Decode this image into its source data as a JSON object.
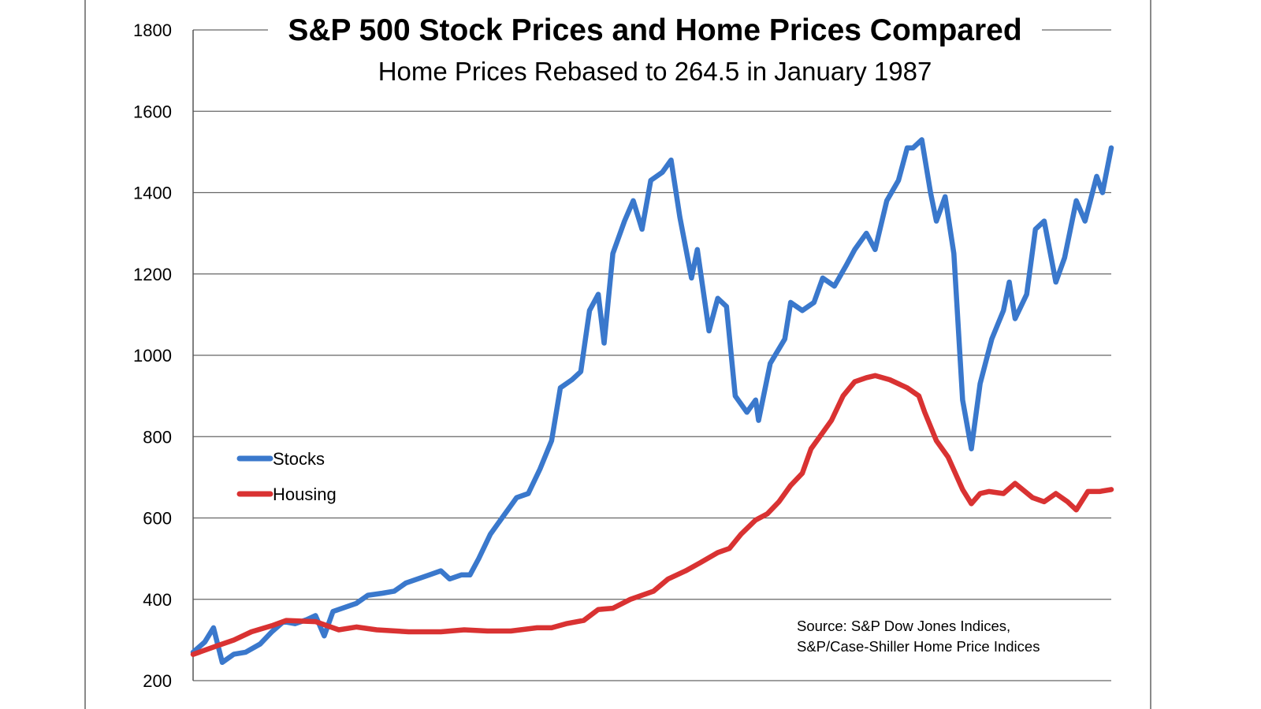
{
  "chart_data": {
    "type": "line",
    "title": "S&P 500 Stock Prices and Home Prices Compared",
    "subtitle": "Home Prices Rebased to 264.5 in January 1987",
    "xlabel": "",
    "ylabel": "",
    "xlim": [
      "1987-01",
      "2013-04"
    ],
    "ylim": [
      200,
      1800
    ],
    "yticks": [
      200,
      400,
      600,
      800,
      1000,
      1200,
      1400,
      1600,
      1800
    ],
    "grid": "horizontal",
    "legend_position": "middle-left",
    "annotation": [
      "Source: S&P Dow Jones Indices,",
      "S&P/Case-Shiller Home Price Indices"
    ],
    "series": [
      {
        "name": "Stocks",
        "color": "#3a78cc",
        "x": [
          "1987-01",
          "1987-05",
          "1987-08",
          "1987-11",
          "1988-03",
          "1988-07",
          "1988-12",
          "1989-04",
          "1989-08",
          "1989-12",
          "1990-04",
          "1990-07",
          "1990-10",
          "1991-01",
          "1991-05",
          "1991-09",
          "1992-01",
          "1992-06",
          "1992-10",
          "1993-02",
          "1993-06",
          "1993-10",
          "1994-02",
          "1994-05",
          "1994-09",
          "1994-12",
          "1995-03",
          "1995-07",
          "1995-12",
          "1996-04",
          "1996-08",
          "1996-12",
          "1997-04",
          "1997-07",
          "1997-11",
          "1998-02",
          "1998-05",
          "1998-08",
          "1998-10",
          "1999-01",
          "1999-05",
          "1999-08",
          "1999-11",
          "2000-02",
          "2000-06",
          "2000-09",
          "2000-12",
          "2001-04",
          "2001-06",
          "2001-10",
          "2002-01",
          "2002-04",
          "2002-07",
          "2002-11",
          "2003-02",
          "2003-03",
          "2003-07",
          "2003-12",
          "2004-02",
          "2004-06",
          "2004-10",
          "2005-01",
          "2005-05",
          "2005-09",
          "2005-12",
          "2006-04",
          "2006-07",
          "2006-11",
          "2007-03",
          "2007-06",
          "2007-08",
          "2007-11",
          "2008-02",
          "2008-04",
          "2008-07",
          "2008-10",
          "2009-01",
          "2009-04",
          "2009-07",
          "2009-11",
          "2010-03",
          "2010-05",
          "2010-07",
          "2010-11",
          "2011-02",
          "2011-05",
          "2011-09",
          "2011-12",
          "2012-04",
          "2012-07",
          "2012-11",
          "2013-01",
          "2013-04"
        ],
        "values": [
          270,
          295,
          330,
          245,
          265,
          270,
          290,
          320,
          345,
          340,
          350,
          360,
          310,
          370,
          380,
          390,
          410,
          415,
          420,
          440,
          450,
          460,
          470,
          450,
          460,
          460,
          500,
          560,
          610,
          650,
          660,
          720,
          790,
          920,
          940,
          960,
          1110,
          1150,
          1030,
          1250,
          1330,
          1380,
          1310,
          1430,
          1450,
          1480,
          1340,
          1190,
          1260,
          1060,
          1140,
          1120,
          900,
          860,
          890,
          840,
          980,
          1040,
          1130,
          1110,
          1130,
          1190,
          1170,
          1220,
          1260,
          1300,
          1260,
          1380,
          1430,
          1510,
          1510,
          1530,
          1400,
          1330,
          1390,
          1250,
          890,
          770,
          930,
          1040,
          1110,
          1180,
          1090,
          1150,
          1310,
          1330,
          1180,
          1240,
          1380,
          1330,
          1440,
          1400,
          1510
        ]
      },
      {
        "name": "Housing",
        "color": "#d93232",
        "x": [
          "1987-01",
          "1987-09",
          "1988-03",
          "1988-09",
          "1989-04",
          "1989-09",
          "1990-07",
          "1991-03",
          "1991-09",
          "1992-04",
          "1993-03",
          "1994-02",
          "1994-10",
          "1995-06",
          "1996-02",
          "1996-11",
          "1997-04",
          "1997-09",
          "1998-03",
          "1998-08",
          "1999-01",
          "1999-07",
          "2000-03",
          "2000-08",
          "2001-02",
          "2001-07",
          "2002-01",
          "2002-05",
          "2002-09",
          "2003-02",
          "2003-06",
          "2003-10",
          "2004-02",
          "2004-06",
          "2004-09",
          "2005-01",
          "2005-04",
          "2005-08",
          "2005-12",
          "2006-04",
          "2006-07",
          "2006-12",
          "2007-06",
          "2007-10",
          "2007-12",
          "2008-04",
          "2008-08",
          "2009-01",
          "2009-04",
          "2009-07",
          "2009-10",
          "2010-03",
          "2010-07",
          "2011-01",
          "2011-05",
          "2011-09",
          "2012-01",
          "2012-04",
          "2012-08",
          "2012-12",
          "2013-04"
        ],
        "values": [
          264.5,
          285,
          300,
          320,
          335,
          348,
          345,
          325,
          332,
          325,
          320,
          320,
          325,
          322,
          322,
          330,
          330,
          340,
          348,
          375,
          378,
          400,
          420,
          450,
          470,
          490,
          515,
          525,
          560,
          595,
          610,
          640,
          680,
          710,
          770,
          810,
          840,
          900,
          935,
          945,
          950,
          940,
          920,
          900,
          860,
          790,
          750,
          670,
          635,
          660,
          665,
          660,
          685,
          650,
          640,
          660,
          640,
          620,
          665,
          665,
          670
        ]
      }
    ]
  }
}
